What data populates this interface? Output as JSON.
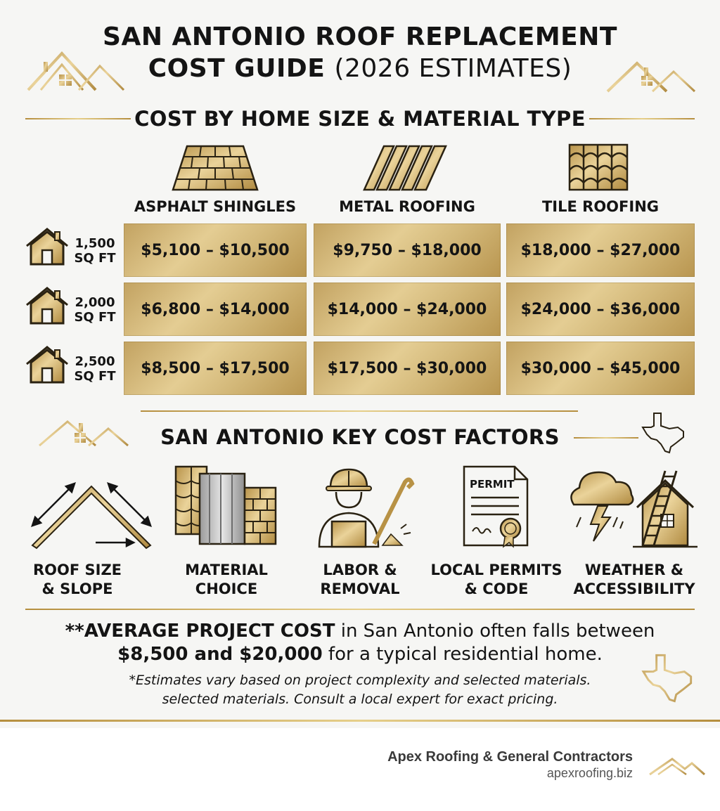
{
  "header": {
    "title_line1": "SAN ANTONIO ROOF REPLACEMENT",
    "title_line2_bold": "COST GUIDE",
    "title_line2_light": "(2026 ESTIMATES)"
  },
  "cost_table": {
    "heading": "COST BY HOME SIZE & MATERIAL TYPE",
    "columns": [
      {
        "label": "ASPHALT SHINGLES",
        "icon": "asphalt-shingles-icon"
      },
      {
        "label": "METAL ROOFING",
        "icon": "metal-roofing-icon"
      },
      {
        "label": "TILE ROOFING",
        "icon": "tile-roofing-icon"
      }
    ],
    "rows": [
      {
        "size": "1,500",
        "unit": "SQ FT",
        "values": [
          "$5,100 – $10,500",
          "$9,750 – $18,000",
          "$18,000 – $27,000"
        ]
      },
      {
        "size": "2,000",
        "unit": "SQ FT",
        "values": [
          "$6,800 – $14,000",
          "$14,000 – $24,000",
          "$24,000 – $36,000"
        ]
      },
      {
        "size": "2,500",
        "unit": "SQ FT",
        "values": [
          "$8,500 – $17,500",
          "$17,500 – $30,000",
          "$30,000 – $45,000"
        ]
      }
    ]
  },
  "factors": {
    "heading": "SAN ANTONIO KEY COST FACTORS",
    "items": [
      {
        "line1": "ROOF SIZE",
        "line2": "& SLOPE",
        "icon": "roof-slope-icon"
      },
      {
        "line1": "MATERIAL",
        "line2": "CHOICE",
        "icon": "material-samples-icon"
      },
      {
        "line1": "LABOR &",
        "line2": "REMOVAL",
        "icon": "roofer-worker-icon"
      },
      {
        "line1": "LOCAL PERMITS",
        "line2": "& CODE",
        "icon": "permit-document-icon",
        "permit_text": "PERMIT"
      },
      {
        "line1": "WEATHER &",
        "line2": "ACCESSIBILITY",
        "icon": "storm-ladder-icon"
      }
    ]
  },
  "summary": {
    "prefix": "**",
    "bold1": "AVERAGE PROJECT COST",
    "text1": " in San Antonio often falls between",
    "bold2": "$8,500 and $20,000",
    "text2": " for a typical residential home.",
    "note_line1": "*Estimates vary based on project complexity and selected materials.",
    "note_line2": "selected materials. Consult a local expert for exact pricing."
  },
  "footer": {
    "company": "Apex Roofing & General Contractors",
    "url": "apexroofing.biz"
  },
  "colors": {
    "gold": "#c9a85c",
    "dark": "#141414",
    "background": "#f6f6f4"
  }
}
